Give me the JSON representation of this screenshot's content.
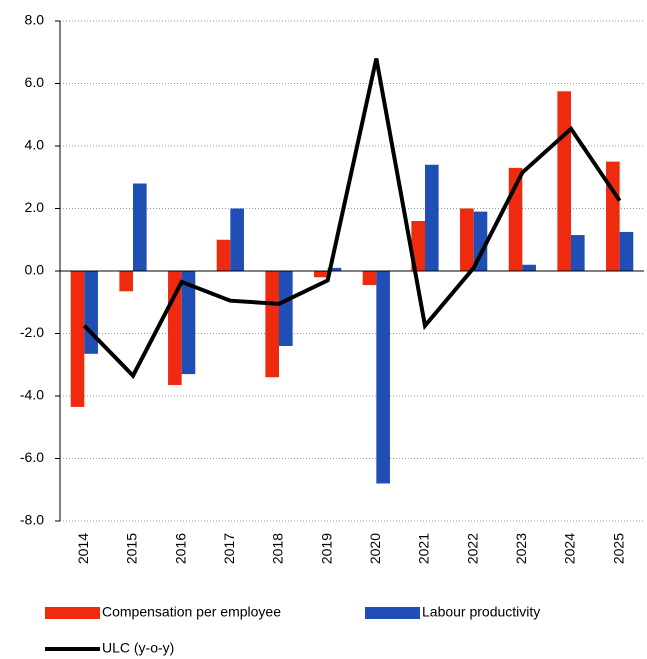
{
  "chart_data": {
    "type": "bar-line",
    "categories": [
      "2014",
      "2015",
      "2016",
      "2017",
      "2018",
      "2019",
      "2020",
      "2021",
      "2022",
      "2023",
      "2024",
      "2025"
    ],
    "series": [
      {
        "name": "Compensation per employee",
        "color": "#ee2a0f",
        "kind": "bar",
        "values": [
          -4.35,
          -0.65,
          -3.65,
          1.0,
          -3.4,
          -0.2,
          -0.45,
          1.6,
          2.0,
          3.3,
          5.75,
          3.5
        ]
      },
      {
        "name": "Labour productivity",
        "color": "#1f4fb4",
        "kind": "bar",
        "values": [
          -2.65,
          2.8,
          -3.3,
          2.0,
          -2.4,
          0.1,
          -6.8,
          3.4,
          1.9,
          0.2,
          1.15,
          1.25
        ]
      },
      {
        "name": "ULC (y-o-y)",
        "color": "#000000",
        "kind": "line",
        "values": [
          -1.75,
          -3.35,
          -0.35,
          -0.95,
          -1.05,
          -0.3,
          6.8,
          -1.75,
          0.1,
          3.15,
          4.55,
          2.25
        ]
      }
    ],
    "ylim": [
      -8,
      8
    ],
    "yticks": [
      {
        "value": -8,
        "label": "-8.0"
      },
      {
        "value": -6,
        "label": "-6.0"
      },
      {
        "value": -4,
        "label": "-4.0"
      },
      {
        "value": -2,
        "label": "-2.0"
      },
      {
        "value": 0,
        "label": "0.0"
      },
      {
        "value": 2,
        "label": "2.0"
      },
      {
        "value": 4,
        "label": "4.0"
      },
      {
        "value": 6,
        "label": "6.0"
      },
      {
        "value": 8,
        "label": "8.0"
      }
    ],
    "grid": true
  }
}
